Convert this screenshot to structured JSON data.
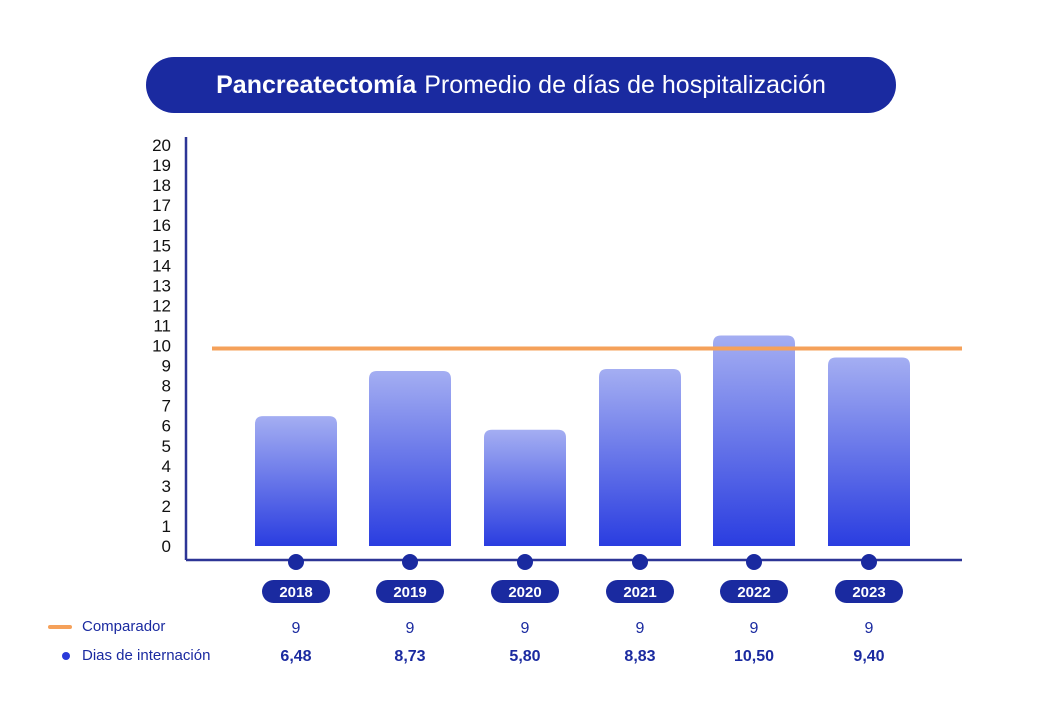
{
  "title": {
    "bold": "Pancreatectomía",
    "rest": "Promedio de días de hospitalización"
  },
  "colors": {
    "navy": "#1a2aa0",
    "bar_top": "#a4aef2",
    "bar_bottom": "#2a3de0",
    "comparator": "#f5a15a",
    "axis": "#2d3596"
  },
  "legend": {
    "comparator": "Comparador",
    "days": "Dias de internación"
  },
  "chart_data": {
    "type": "bar",
    "categories": [
      "2018",
      "2019",
      "2020",
      "2021",
      "2022",
      "2023"
    ],
    "series": [
      {
        "name": "Dias de internación",
        "values": [
          6.48,
          8.73,
          5.8,
          8.83,
          10.5,
          9.4
        ]
      },
      {
        "name": "Comparador",
        "type": "line",
        "values": [
          9,
          9,
          9,
          9,
          9,
          9
        ]
      }
    ],
    "ylim": [
      0,
      20
    ],
    "yticks": [
      0,
      1,
      2,
      3,
      4,
      5,
      6,
      7,
      8,
      9,
      10,
      11,
      12,
      13,
      14,
      15,
      16,
      17,
      18,
      19,
      20
    ],
    "value_labels": [
      "6,48",
      "8,73",
      "5,80",
      "8,83",
      "10,50",
      "9,40"
    ],
    "comparator_labels": [
      "9",
      "9",
      "9",
      "9",
      "9",
      "9"
    ],
    "legend_position": "bottom-left"
  }
}
